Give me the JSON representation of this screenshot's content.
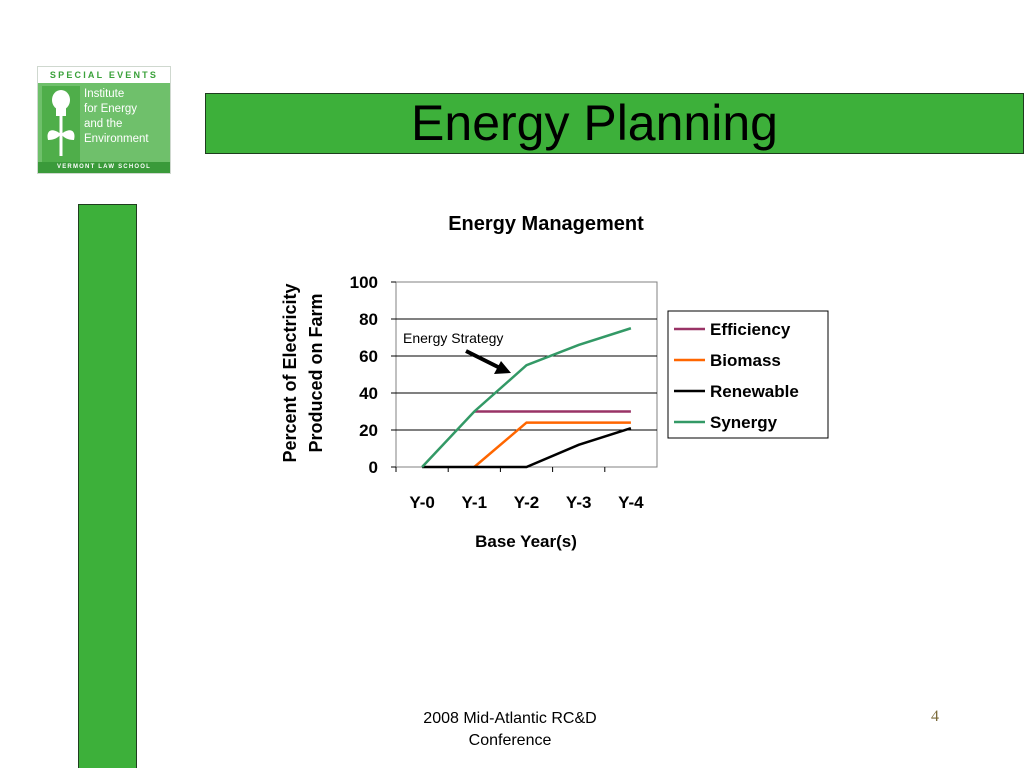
{
  "slide": {
    "title": "Energy Planning",
    "footer_line1": "2008 Mid-Atlantic RC&D",
    "footer_line2": "Conference",
    "page_number": "4"
  },
  "logo": {
    "top_text": "SPECIAL EVENTS",
    "lines": [
      "Institute",
      "for Energy",
      "and the",
      "Environment"
    ],
    "bottom_text": "VERMONT LAW SCHOOL"
  },
  "colors": {
    "green_bar": "#3db03a",
    "efficiency": "#993366",
    "biomass": "#ff6600",
    "renewable": "#000000",
    "synergy": "#339966"
  },
  "chart_data": {
    "type": "line",
    "title": "Energy Management",
    "xlabel": "Base Year(s)",
    "ylabel_line1": "Percent of Electricity",
    "ylabel_line2": "Produced on Farm",
    "categories": [
      "Y-0",
      "Y-1",
      "Y-2",
      "Y-3",
      "Y-4"
    ],
    "ylim": [
      0,
      100
    ],
    "yticks": [
      0,
      20,
      40,
      60,
      80,
      100
    ],
    "grid": true,
    "legend_position": "right",
    "annotation": "Energy Strategy",
    "series": [
      {
        "name": "Efficiency",
        "color": "#993366",
        "points": [
          [
            1,
            30
          ],
          [
            2,
            30
          ],
          [
            3,
            30
          ],
          [
            4,
            30
          ]
        ]
      },
      {
        "name": "Biomass",
        "color": "#ff6600",
        "points": [
          [
            1,
            0
          ],
          [
            2,
            24
          ],
          [
            3,
            24
          ],
          [
            4,
            24
          ]
        ]
      },
      {
        "name": "Renewable",
        "color": "#000000",
        "points": [
          [
            0,
            0
          ],
          [
            1,
            0
          ],
          [
            2,
            0
          ],
          [
            3,
            12
          ],
          [
            4,
            21
          ]
        ]
      },
      {
        "name": "Synergy",
        "color": "#339966",
        "points": [
          [
            0,
            0
          ],
          [
            1,
            30
          ],
          [
            2,
            55
          ],
          [
            3,
            66
          ],
          [
            4,
            75
          ]
        ]
      }
    ]
  }
}
